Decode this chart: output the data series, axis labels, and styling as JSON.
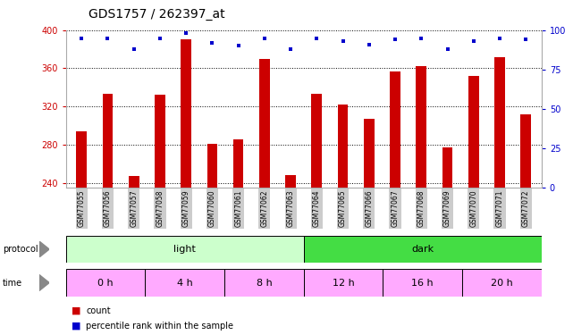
{
  "title": "GDS1757 / 262397_at",
  "samples": [
    "GSM77055",
    "GSM77056",
    "GSM77057",
    "GSM77058",
    "GSM77059",
    "GSM77060",
    "GSM77061",
    "GSM77062",
    "GSM77063",
    "GSM77064",
    "GSM77065",
    "GSM77066",
    "GSM77067",
    "GSM77068",
    "GSM77069",
    "GSM77070",
    "GSM77071",
    "GSM77072"
  ],
  "counts": [
    294,
    333,
    247,
    332,
    390,
    281,
    286,
    370,
    248,
    333,
    322,
    307,
    357,
    362,
    277,
    352,
    372,
    312
  ],
  "percentile_ranks": [
    95,
    95,
    88,
    95,
    98,
    92,
    90,
    95,
    88,
    95,
    93,
    91,
    94,
    95,
    88,
    93,
    95,
    94
  ],
  "ylim_left": [
    235,
    400
  ],
  "ylim_right": [
    0,
    100
  ],
  "yticks_left": [
    240,
    280,
    320,
    360,
    400
  ],
  "yticks_right": [
    0,
    25,
    50,
    75,
    100
  ],
  "bar_color": "#cc0000",
  "dot_color": "#0000cc",
  "grid_color": "#000000",
  "background_color": "#ffffff",
  "protocol_light_color": "#ccffcc",
  "protocol_dark_color": "#44dd44",
  "time_color": "#ffaaff",
  "tick_label_color_left": "#cc0000",
  "tick_label_color_right": "#0000cc",
  "xticklabel_bg": "#cccccc",
  "title_fontsize": 10,
  "bar_width": 0.4,
  "n_light": 9,
  "n_dark": 9
}
